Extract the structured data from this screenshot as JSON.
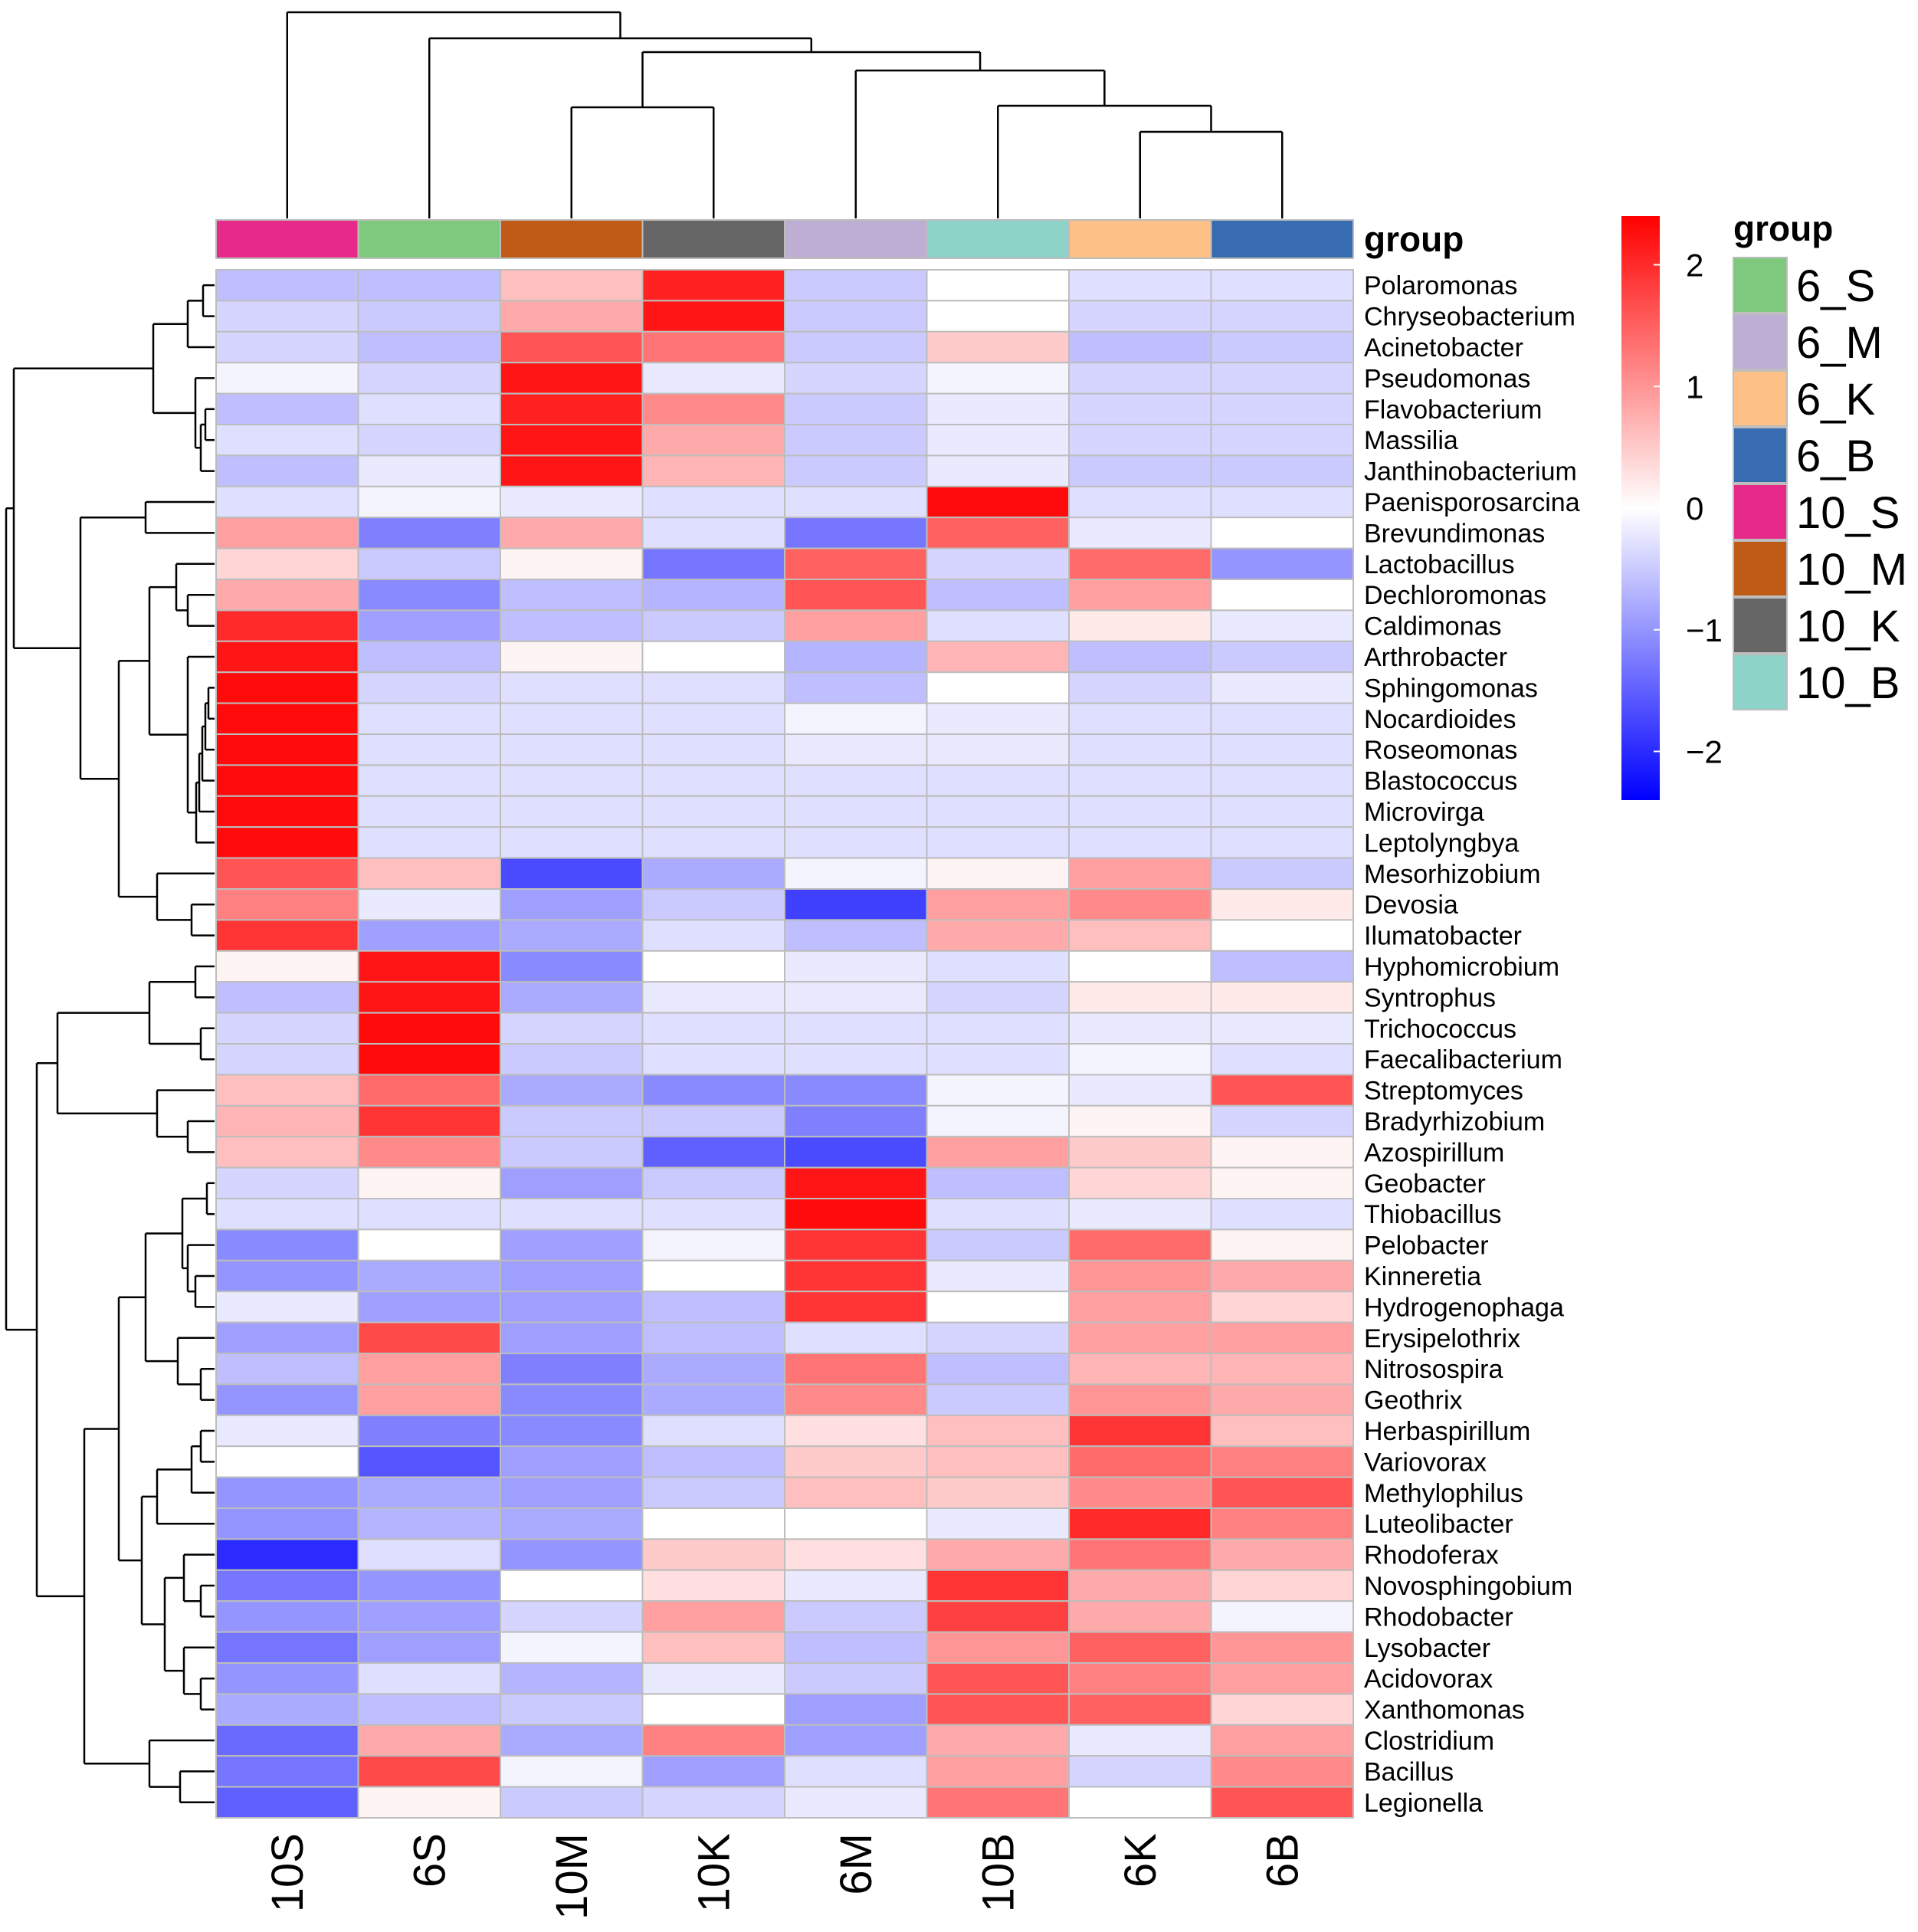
{
  "chart_data": {
    "type": "heatmap",
    "columns": [
      "10S",
      "6S",
      "10M",
      "10K",
      "6M",
      "10B",
      "6K",
      "6B"
    ],
    "column_groups": [
      "10_S",
      "6_S",
      "10_M",
      "10_K",
      "6_M",
      "10_B",
      "6_K",
      "6_B"
    ],
    "rows": [
      "Polaromonas",
      "Chryseobacterium",
      "Acinetobacter",
      "Pseudomonas",
      "Flavobacterium",
      "Massilia",
      "Janthinobacterium",
      "Paenisporosarcina",
      "Brevundimonas",
      "Lactobacillus",
      "Dechloromonas",
      "Caldimonas",
      "Arthrobacter",
      "Sphingomonas",
      "Nocardioides",
      "Roseomonas",
      "Blastococcus",
      "Microvirga",
      "Leptolyngbya",
      "Mesorhizobium",
      "Devosia",
      "Ilumatobacter",
      "Hyphomicrobium",
      "Syntrophus",
      "Trichococcus",
      "Faecalibacterium",
      "Streptomyces",
      "Bradyrhizobium",
      "Azospirillum",
      "Geobacter",
      "Thiobacillus",
      "Pelobacter",
      "Kinneretia",
      "Hydrogenophaga",
      "Erysipelothrix",
      "Nitrosospira",
      "Geothrix",
      "Herbaspirillum",
      "Variovorax",
      "Methylophilus",
      "Luteolibacter",
      "Rhodoferax",
      "Novosphingobium",
      "Rhodobacter",
      "Lysobacter",
      "Acidovorax",
      "Xanthomonas",
      "Clostridium",
      "Bacillus",
      "Legionella"
    ],
    "values": [
      [
        -0.6,
        -0.6,
        0.6,
        2.1,
        -0.5,
        0.0,
        -0.3,
        -0.3
      ],
      [
        -0.4,
        -0.5,
        0.8,
        2.2,
        -0.5,
        0.0,
        -0.4,
        -0.4
      ],
      [
        -0.4,
        -0.6,
        1.6,
        1.3,
        -0.5,
        0.5,
        -0.6,
        -0.5
      ],
      [
        -0.1,
        -0.4,
        2.2,
        -0.2,
        -0.4,
        -0.1,
        -0.4,
        -0.4
      ],
      [
        -0.6,
        -0.3,
        2.1,
        1.1,
        -0.5,
        -0.2,
        -0.4,
        -0.4
      ],
      [
        -0.3,
        -0.4,
        2.2,
        0.8,
        -0.5,
        -0.2,
        -0.4,
        -0.4
      ],
      [
        -0.6,
        -0.2,
        2.2,
        0.7,
        -0.5,
        -0.2,
        -0.5,
        -0.5
      ],
      [
        -0.3,
        -0.1,
        -0.2,
        -0.3,
        -0.3,
        2.3,
        -0.3,
        -0.3
      ],
      [
        0.9,
        -1.2,
        0.8,
        -0.3,
        -1.3,
        1.5,
        -0.2,
        0.0
      ],
      [
        0.4,
        -0.5,
        0.1,
        -1.3,
        1.5,
        -0.4,
        1.4,
        -1.0
      ],
      [
        0.8,
        -1.1,
        -0.6,
        -0.7,
        1.6,
        -0.6,
        0.9,
        0.0
      ],
      [
        2.0,
        -0.9,
        -0.6,
        -0.5,
        0.9,
        -0.3,
        0.2,
        -0.2
      ],
      [
        2.2,
        -0.6,
        0.1,
        0.0,
        -0.7,
        0.7,
        -0.6,
        -0.5
      ],
      [
        2.3,
        -0.4,
        -0.3,
        -0.3,
        -0.6,
        0.0,
        -0.4,
        -0.2
      ],
      [
        2.3,
        -0.3,
        -0.3,
        -0.3,
        -0.1,
        -0.2,
        -0.3,
        -0.3
      ],
      [
        2.3,
        -0.3,
        -0.3,
        -0.3,
        -0.2,
        -0.2,
        -0.3,
        -0.3
      ],
      [
        2.3,
        -0.3,
        -0.3,
        -0.3,
        -0.3,
        -0.3,
        -0.3,
        -0.3
      ],
      [
        2.3,
        -0.3,
        -0.3,
        -0.3,
        -0.3,
        -0.3,
        -0.3,
        -0.3
      ],
      [
        2.3,
        -0.3,
        -0.3,
        -0.3,
        -0.3,
        -0.3,
        -0.3,
        -0.3
      ],
      [
        1.6,
        0.6,
        -1.7,
        -0.8,
        -0.1,
        0.1,
        0.9,
        -0.5
      ],
      [
        1.2,
        -0.2,
        -0.9,
        -0.5,
        -1.8,
        0.9,
        1.1,
        0.2
      ],
      [
        1.9,
        -0.9,
        -0.8,
        -0.3,
        -0.6,
        0.8,
        0.6,
        0.0
      ],
      [
        0.1,
        2.2,
        -1.1,
        0.0,
        -0.2,
        -0.3,
        0.0,
        -0.6
      ],
      [
        -0.6,
        2.2,
        -0.8,
        -0.2,
        -0.2,
        -0.4,
        0.2,
        0.2
      ],
      [
        -0.4,
        2.3,
        -0.4,
        -0.3,
        -0.3,
        -0.3,
        -0.2,
        -0.2
      ],
      [
        -0.4,
        2.3,
        -0.5,
        -0.3,
        -0.3,
        -0.3,
        -0.1,
        -0.3
      ],
      [
        0.6,
        1.4,
        -0.8,
        -1.1,
        -1.1,
        -0.1,
        -0.2,
        1.6
      ],
      [
        0.7,
        1.9,
        -0.5,
        -0.5,
        -1.2,
        -0.1,
        0.1,
        -0.4
      ],
      [
        0.6,
        1.1,
        -0.5,
        -1.5,
        -1.7,
        0.9,
        0.5,
        0.1
      ],
      [
        -0.4,
        0.1,
        -0.9,
        -0.5,
        2.2,
        -0.6,
        0.4,
        0.1
      ],
      [
        -0.3,
        -0.3,
        -0.3,
        -0.3,
        2.3,
        -0.3,
        -0.2,
        -0.3
      ],
      [
        -1.1,
        0.0,
        -0.9,
        -0.1,
        1.9,
        -0.5,
        1.4,
        0.1
      ],
      [
        -1.0,
        -0.8,
        -0.9,
        0.0,
        1.9,
        -0.2,
        1.0,
        0.8
      ],
      [
        -0.2,
        -0.9,
        -0.9,
        -0.6,
        1.9,
        0.0,
        0.9,
        0.4
      ],
      [
        -0.9,
        1.7,
        -0.9,
        -0.6,
        -0.3,
        -0.4,
        0.9,
        0.9
      ],
      [
        -0.6,
        0.9,
        -1.2,
        -0.8,
        1.3,
        -0.6,
        0.7,
        0.7
      ],
      [
        -1.0,
        0.9,
        -1.1,
        -0.8,
        1.1,
        -0.5,
        1.0,
        0.8
      ],
      [
        -0.2,
        -1.2,
        -1.1,
        -0.3,
        0.3,
        0.6,
        1.9,
        0.6
      ],
      [
        0.0,
        -1.6,
        -0.9,
        -0.6,
        0.5,
        0.6,
        1.4,
        1.2
      ],
      [
        -1.0,
        -0.8,
        -0.9,
        -0.5,
        0.6,
        0.5,
        1.1,
        1.6
      ],
      [
        -1.0,
        -0.7,
        -0.8,
        0.0,
        0.0,
        -0.2,
        2.0,
        1.2
      ],
      [
        -2.0,
        -0.3,
        -1.0,
        0.5,
        0.3,
        0.8,
        1.3,
        0.8
      ],
      [
        -1.3,
        -1.0,
        0.0,
        0.3,
        -0.2,
        1.9,
        0.8,
        0.4
      ],
      [
        -1.0,
        -0.9,
        -0.4,
        0.9,
        -0.5,
        1.8,
        0.8,
        -0.1
      ],
      [
        -1.3,
        -0.9,
        -0.1,
        0.6,
        -0.6,
        1.0,
        1.5,
        1.0
      ],
      [
        -1.0,
        -0.3,
        -0.7,
        -0.2,
        -0.5,
        1.6,
        1.2,
        0.9
      ],
      [
        -0.8,
        -0.6,
        -0.5,
        0.0,
        -0.9,
        1.6,
        1.5,
        0.4
      ],
      [
        -1.4,
        0.8,
        -0.8,
        1.2,
        -0.9,
        0.8,
        -0.2,
        0.9
      ],
      [
        -1.3,
        1.7,
        -0.1,
        -0.9,
        -0.3,
        0.9,
        -0.4,
        1.1
      ],
      [
        -1.5,
        0.1,
        -0.5,
        -0.4,
        -0.2,
        1.3,
        0.0,
        1.6
      ]
    ],
    "annotation": {
      "title": "group",
      "colors": {
        "6_S": "#7FC97F",
        "6_M": "#BEAED4",
        "6_K": "#FDC086",
        "6_B": "#386CB0",
        "10_S": "#E7298A",
        "10_M": "#BF5B17",
        "10_K": "#666666",
        "10_B": "#8DD3C7"
      }
    },
    "legend": {
      "title": "group",
      "items": [
        "6_S",
        "6_M",
        "6_K",
        "6_B",
        "10_S",
        "10_M",
        "10_K",
        "10_B"
      ]
    },
    "color_scale": {
      "min": -2.4,
      "max": 2.4,
      "low_color": "#0000FF",
      "mid_color": "#FFFFFF",
      "high_color": "#FF0000",
      "ticks": [
        2,
        1,
        0,
        -1,
        -2
      ],
      "tick_labels": [
        "2",
        "1",
        "0",
        "−1",
        "−2"
      ]
    }
  }
}
